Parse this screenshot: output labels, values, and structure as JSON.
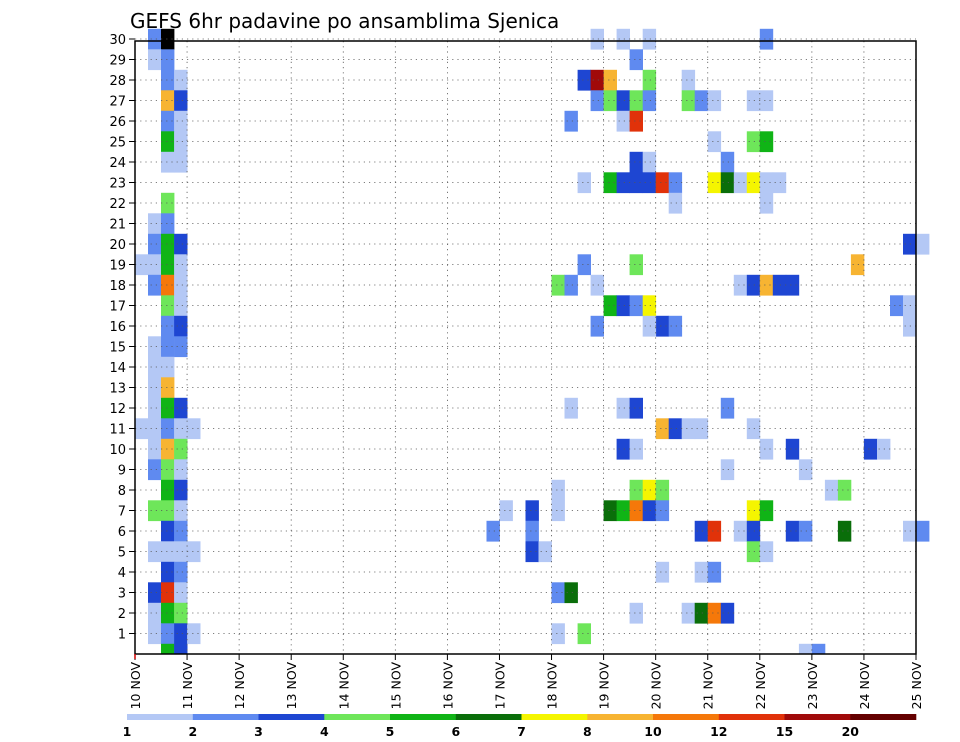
{
  "chart_data": {
    "type": "heatmap",
    "title": "GEFS 6hr padavine po ansamblima Sjenica",
    "xlabel": "",
    "ylabel": "",
    "x_start_day": 10,
    "x_end_day": 25,
    "y_members": [
      1,
      30
    ],
    "x_tick_labels": [
      "10 NOV",
      "11 NOV",
      "12 NOV",
      "13 NOV",
      "14 NOV",
      "15 NOV",
      "16 NOV",
      "17 NOV",
      "18 NOV",
      "19 NOV",
      "20 NOV",
      "21 NOV",
      "22 NOV",
      "23 NOV",
      "24 NOV",
      "25 NOV"
    ],
    "y_tick_labels": [
      "1",
      "2",
      "3",
      "4",
      "5",
      "6",
      "7",
      "8",
      "9",
      "10",
      "11",
      "12",
      "13",
      "14",
      "15",
      "16",
      "17",
      "18",
      "19",
      "20",
      "21",
      "22",
      "23",
      "24",
      "25",
      "26",
      "27",
      "28",
      "29",
      "30"
    ],
    "grid": "dotted",
    "colorbar": {
      "levels": [
        1,
        2,
        3,
        4,
        5,
        6,
        7,
        8,
        10,
        12,
        15,
        20
      ],
      "labels": [
        "1",
        "2",
        "3",
        "4",
        "5",
        "6",
        "7",
        "8",
        "10",
        "12",
        "15",
        "20"
      ],
      "colors": [
        "#b4c8f5",
        "#5f8af0",
        "#1e46d2",
        "#6ee65a",
        "#10b416",
        "#0a6e0a",
        "#f5f500",
        "#f7b432",
        "#f5780a",
        "#e1320a",
        "#a00a0a",
        "#640000"
      ]
    },
    "cells": [
      [
        10.25,
        30,
        1
      ],
      [
        10.5,
        30,
        14
      ],
      [
        10.25,
        29,
        0
      ],
      [
        10.5,
        29,
        1
      ],
      [
        10.5,
        28,
        1
      ],
      [
        10.75,
        28,
        0
      ],
      [
        10.5,
        27,
        7
      ],
      [
        10.75,
        27,
        2
      ],
      [
        10.5,
        26,
        1
      ],
      [
        10.75,
        26,
        0
      ],
      [
        10.5,
        25,
        4
      ],
      [
        10.75,
        25,
        0
      ],
      [
        10.5,
        24,
        0
      ],
      [
        10.75,
        24,
        0
      ],
      [
        10.5,
        22,
        3
      ],
      [
        10.25,
        21,
        0
      ],
      [
        10.5,
        21,
        1
      ],
      [
        10.25,
        20,
        1
      ],
      [
        10.5,
        20,
        4
      ],
      [
        10.75,
        20,
        2
      ],
      [
        10.0,
        19,
        0
      ],
      [
        10.25,
        19,
        0
      ],
      [
        10.5,
        19,
        4
      ],
      [
        10.75,
        19,
        0
      ],
      [
        10.25,
        18,
        1
      ],
      [
        10.5,
        18,
        8
      ],
      [
        10.75,
        18,
        0
      ],
      [
        10.5,
        17,
        3
      ],
      [
        10.75,
        17,
        0
      ],
      [
        10.5,
        16,
        1
      ],
      [
        10.75,
        16,
        2
      ],
      [
        10.25,
        15,
        0
      ],
      [
        10.5,
        15,
        1
      ],
      [
        10.75,
        15,
        1
      ],
      [
        10.25,
        14,
        0
      ],
      [
        10.5,
        14,
        0
      ],
      [
        10.25,
        13,
        0
      ],
      [
        10.5,
        13,
        7
      ],
      [
        10.25,
        12,
        0
      ],
      [
        10.5,
        12,
        4
      ],
      [
        10.75,
        12,
        2
      ],
      [
        10.0,
        11,
        0
      ],
      [
        10.25,
        11,
        0
      ],
      [
        10.5,
        11,
        1
      ],
      [
        10.75,
        11,
        0
      ],
      [
        11.0,
        11,
        0
      ],
      [
        10.25,
        10,
        0
      ],
      [
        10.5,
        10,
        7
      ],
      [
        10.75,
        10,
        3
      ],
      [
        10.25,
        9,
        1
      ],
      [
        10.5,
        9,
        3
      ],
      [
        10.75,
        9,
        0
      ],
      [
        10.5,
        8,
        4
      ],
      [
        10.75,
        8,
        2
      ],
      [
        10.25,
        7,
        3
      ],
      [
        10.5,
        7,
        3
      ],
      [
        10.75,
        7,
        0
      ],
      [
        10.5,
        6,
        2
      ],
      [
        10.75,
        6,
        1
      ],
      [
        10.25,
        5,
        0
      ],
      [
        10.5,
        5,
        0
      ],
      [
        10.75,
        5,
        0
      ],
      [
        11.0,
        5,
        0
      ],
      [
        10.5,
        4,
        2
      ],
      [
        10.75,
        4,
        1
      ],
      [
        10.25,
        3,
        2
      ],
      [
        10.5,
        3,
        9
      ],
      [
        10.75,
        3,
        0
      ],
      [
        10.25,
        2,
        0
      ],
      [
        10.5,
        2,
        4
      ],
      [
        10.75,
        2,
        3
      ],
      [
        10.25,
        1,
        0
      ],
      [
        10.5,
        1,
        1
      ],
      [
        10.75,
        1,
        2
      ],
      [
        11.0,
        1,
        0
      ],
      [
        10.5,
        0.5,
        4
      ],
      [
        10.75,
        0.5,
        2
      ],
      [
        18.75,
        30,
        0
      ],
      [
        19.25,
        30,
        0
      ],
      [
        19.75,
        30,
        0
      ],
      [
        22.0,
        30,
        1
      ],
      [
        19.5,
        29,
        1
      ],
      [
        18.5,
        28,
        2
      ],
      [
        18.75,
        28,
        10
      ],
      [
        19.0,
        28,
        7
      ],
      [
        19.75,
        28,
        3
      ],
      [
        20.5,
        28,
        0
      ],
      [
        18.75,
        27,
        1
      ],
      [
        19.0,
        27,
        3
      ],
      [
        19.25,
        27,
        2
      ],
      [
        19.5,
        27,
        3
      ],
      [
        19.75,
        27,
        1
      ],
      [
        20.5,
        27,
        3
      ],
      [
        20.75,
        27,
        1
      ],
      [
        21.0,
        27,
        0
      ],
      [
        21.75,
        27,
        0
      ],
      [
        22.0,
        27,
        0
      ],
      [
        18.25,
        26,
        1
      ],
      [
        19.25,
        26,
        0
      ],
      [
        19.5,
        26,
        9
      ],
      [
        21.0,
        25,
        0
      ],
      [
        21.75,
        25,
        3
      ],
      [
        22.0,
        25,
        4
      ],
      [
        19.5,
        24,
        2
      ],
      [
        19.75,
        24,
        0
      ],
      [
        21.25,
        24,
        1
      ],
      [
        18.5,
        23,
        0
      ],
      [
        19.0,
        23,
        4
      ],
      [
        19.25,
        23,
        2
      ],
      [
        19.5,
        23,
        2
      ],
      [
        19.75,
        23,
        2
      ],
      [
        20.0,
        23,
        9
      ],
      [
        20.25,
        23,
        1
      ],
      [
        21.0,
        23,
        6
      ],
      [
        21.25,
        23,
        5
      ],
      [
        21.5,
        23,
        0
      ],
      [
        21.75,
        23,
        6
      ],
      [
        22.0,
        23,
        0
      ],
      [
        22.25,
        23,
        0
      ],
      [
        20.25,
        22,
        0
      ],
      [
        22.0,
        22,
        0
      ],
      [
        24.75,
        20,
        2
      ],
      [
        25.0,
        20,
        0
      ],
      [
        18.5,
        19,
        1
      ],
      [
        19.5,
        19,
        3
      ],
      [
        23.75,
        19,
        7
      ],
      [
        18.0,
        18,
        3
      ],
      [
        18.25,
        18,
        1
      ],
      [
        18.75,
        18,
        0
      ],
      [
        21.5,
        18,
        0
      ],
      [
        21.75,
        18,
        2
      ],
      [
        22.0,
        18,
        7
      ],
      [
        22.25,
        18,
        2
      ],
      [
        22.5,
        18,
        2
      ],
      [
        19.0,
        17,
        4
      ],
      [
        19.25,
        17,
        2
      ],
      [
        19.5,
        17,
        1
      ],
      [
        19.75,
        17,
        6
      ],
      [
        24.5,
        17,
        1
      ],
      [
        24.75,
        17,
        0
      ],
      [
        20.0,
        16,
        2
      ],
      [
        20.25,
        16,
        1
      ],
      [
        18.75,
        16,
        1
      ],
      [
        19.75,
        16,
        0
      ],
      [
        24.75,
        16,
        0
      ],
      [
        18.25,
        12,
        0
      ],
      [
        19.25,
        12,
        0
      ],
      [
        19.5,
        12,
        2
      ],
      [
        21.25,
        12,
        1
      ],
      [
        20.0,
        11,
        7
      ],
      [
        20.25,
        11,
        2
      ],
      [
        20.5,
        11,
        0
      ],
      [
        20.75,
        11,
        0
      ],
      [
        21.75,
        11,
        0
      ],
      [
        19.25,
        10,
        2
      ],
      [
        19.5,
        10,
        0
      ],
      [
        22.0,
        10,
        0
      ],
      [
        22.5,
        10,
        2
      ],
      [
        24.0,
        10,
        2
      ],
      [
        24.25,
        10,
        0
      ],
      [
        21.25,
        9,
        0
      ],
      [
        22.75,
        9,
        0
      ],
      [
        18.0,
        8,
        0
      ],
      [
        19.5,
        8,
        3
      ],
      [
        19.75,
        8,
        6
      ],
      [
        20.0,
        8,
        3
      ],
      [
        23.25,
        8,
        0
      ],
      [
        23.5,
        8,
        3
      ],
      [
        17.0,
        7,
        0
      ],
      [
        17.5,
        7,
        2
      ],
      [
        18.0,
        7,
        0
      ],
      [
        19.0,
        7,
        5
      ],
      [
        19.25,
        7,
        4
      ],
      [
        19.5,
        7,
        8
      ],
      [
        19.75,
        7,
        2
      ],
      [
        20.0,
        7,
        1
      ],
      [
        21.75,
        7,
        6
      ],
      [
        22.0,
        7,
        4
      ],
      [
        16.75,
        6,
        1
      ],
      [
        17.5,
        6,
        1
      ],
      [
        20.75,
        6,
        2
      ],
      [
        21.0,
        6,
        9
      ],
      [
        21.5,
        6,
        0
      ],
      [
        21.75,
        6,
        2
      ],
      [
        22.5,
        6,
        2
      ],
      [
        22.75,
        6,
        1
      ],
      [
        23.5,
        6,
        5
      ],
      [
        24.75,
        6,
        0
      ],
      [
        25.0,
        6,
        1
      ],
      [
        17.5,
        5,
        2
      ],
      [
        17.75,
        5,
        0
      ],
      [
        21.75,
        5,
        3
      ],
      [
        22.0,
        5,
        0
      ],
      [
        20.0,
        4,
        0
      ],
      [
        20.75,
        4,
        0
      ],
      [
        21.0,
        4,
        1
      ],
      [
        18.0,
        3,
        1
      ],
      [
        18.25,
        3,
        5
      ],
      [
        19.5,
        2,
        0
      ],
      [
        20.5,
        2,
        0
      ],
      [
        20.75,
        2,
        5
      ],
      [
        21.0,
        2,
        8
      ],
      [
        21.25,
        2,
        2
      ],
      [
        18.0,
        1,
        0
      ],
      [
        18.5,
        1,
        3
      ],
      [
        22.75,
        0.5,
        0
      ],
      [
        23.0,
        0.5,
        1
      ]
    ]
  }
}
